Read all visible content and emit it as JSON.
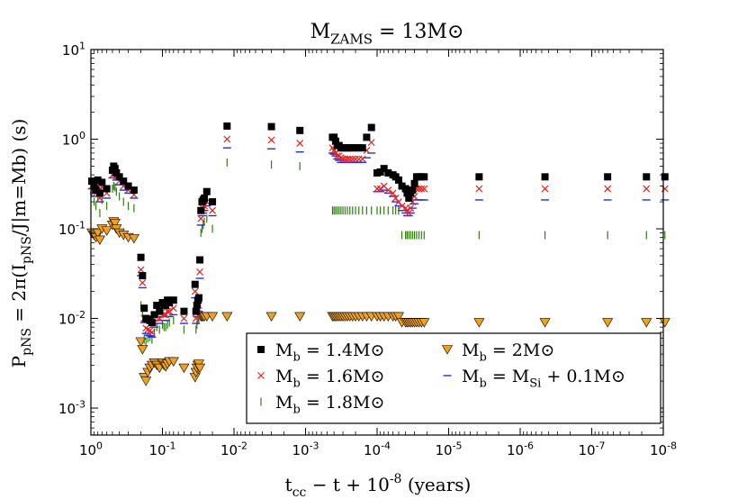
{
  "chart_data": {
    "type": "scatter",
    "title": "M_ZAMS = 13M⊙",
    "xlabel": "t_cc − t + 10^-8 (years)",
    "ylabel": "P_pNS = 2π(I_pNS/J|m=Mb) (s)",
    "xscale": "log",
    "yscale": "log",
    "x_direction": "reversed",
    "xlim": [
      1,
      1e-08
    ],
    "ylim": [
      0.0005,
      10
    ],
    "x_ticks": [
      {
        "value": 1,
        "label": "10^0"
      },
      {
        "value": 0.1,
        "label": "10^-1"
      },
      {
        "value": 0.01,
        "label": "10^-2"
      },
      {
        "value": 0.001,
        "label": "10^-3"
      },
      {
        "value": 0.0001,
        "label": "10^-4"
      },
      {
        "value": 1e-05,
        "label": "10^-5"
      },
      {
        "value": 1e-06,
        "label": "10^-6"
      },
      {
        "value": 1e-07,
        "label": "10^-7"
      },
      {
        "value": 1e-08,
        "label": "10^-8"
      }
    ],
    "y_ticks": [
      {
        "value": 0.001,
        "label": "10^-3"
      },
      {
        "value": 0.01,
        "label": "10^-2"
      },
      {
        "value": 0.1,
        "label": "10^-1"
      },
      {
        "value": 1,
        "label": "10^0"
      },
      {
        "value": 10,
        "label": "10^1"
      }
    ],
    "grid": false,
    "legend_placement": "lower-right",
    "x": [
      0.97,
      0.9,
      0.85,
      0.8,
      0.75,
      0.7,
      0.6,
      0.5,
      0.48,
      0.46,
      0.44,
      0.4,
      0.35,
      0.3,
      0.25,
      0.2,
      0.19,
      0.18,
      0.17,
      0.16,
      0.15,
      0.14,
      0.13,
      0.12,
      0.11,
      0.1,
      0.095,
      0.09,
      0.085,
      0.08,
      0.07,
      0.05,
      0.035,
      0.034,
      0.033,
      0.032,
      0.031,
      0.03,
      0.029,
      0.028,
      0.027,
      0.026,
      0.024,
      0.02,
      0.0125,
      0.003,
      0.0012,
      0.00042,
      0.0004,
      0.00038,
      0.00036,
      0.00034,
      0.00032,
      0.0003,
      0.00028,
      0.00026,
      0.00024,
      0.00022,
      0.0002,
      0.00018,
      0.00016,
      0.00014,
      0.00012,
      0.0001,
      9e-05,
      8e-05,
      7e-05,
      6e-05,
      5.5e-05,
      5e-05,
      4.5e-05,
      4e-05,
      3.8e-05,
      3.6e-05,
      3.4e-05,
      3.2e-05,
      3e-05,
      2.8e-05,
      2.6e-05,
      2.4e-05,
      2.2e-05,
      3.75e-06,
      4.5e-07,
      6e-08,
      1.72e-08,
      9.5e-09
    ],
    "series": [
      {
        "name": "M_b = 1.4M⊙",
        "marker": "square",
        "color": "#000000",
        "values": [
          0.34,
          0.3,
          0.27,
          0.35,
          0.25,
          0.33,
          0.28,
          0.45,
          0.5,
          0.47,
          0.42,
          0.38,
          0.34,
          0.3,
          0.27,
          0.048,
          0.03,
          0.013,
          0.01,
          0.0098,
          0.0095,
          0.009,
          0.011,
          0.014,
          0.012,
          0.015,
          0.014,
          0.014,
          0.016,
          0.015,
          0.016,
          0.012,
          0.024,
          0.012,
          0.014,
          0.016,
          0.017,
          0.045,
          0.16,
          0.2,
          0.21,
          0.22,
          0.26,
          0.2,
          1.4,
          1.38,
          1.25,
          1.05,
          1.05,
          0.95,
          0.85,
          0.85,
          0.8,
          0.8,
          0.8,
          0.8,
          0.8,
          0.8,
          0.8,
          0.8,
          0.8,
          1.05,
          1.35,
          0.42,
          0.43,
          0.47,
          0.42,
          0.4,
          0.38,
          0.35,
          0.3,
          0.28,
          0.25,
          0.22,
          0.25,
          0.27,
          0.32,
          0.38,
          0.38,
          0.38,
          0.38,
          0.38,
          0.38,
          0.38,
          0.38,
          0.38
        ]
      },
      {
        "name": "M_b = 1.6M⊙",
        "marker": "x",
        "color": "#e8201f",
        "values": [
          0.3,
          0.27,
          0.25,
          0.3,
          0.22,
          0.29,
          0.25,
          0.4,
          0.45,
          0.42,
          0.38,
          0.34,
          0.3,
          0.27,
          0.24,
          0.035,
          0.025,
          0.01,
          0.0078,
          0.0075,
          0.0073,
          0.007,
          0.009,
          0.011,
          0.01,
          0.012,
          0.011,
          0.011,
          0.012,
          0.012,
          0.013,
          0.01,
          0.02,
          0.01,
          0.012,
          0.013,
          0.014,
          0.033,
          0.13,
          0.16,
          0.17,
          0.18,
          0.2,
          0.16,
          1.0,
          0.98,
          0.9,
          0.8,
          0.75,
          0.7,
          0.65,
          0.65,
          0.62,
          0.6,
          0.6,
          0.6,
          0.6,
          0.6,
          0.6,
          0.6,
          0.6,
          0.75,
          0.92,
          0.28,
          0.28,
          0.3,
          0.27,
          0.25,
          0.22,
          0.2,
          0.18,
          0.17,
          0.16,
          0.15,
          0.17,
          0.2,
          0.23,
          0.28,
          0.28,
          0.28,
          0.28,
          0.28,
          0.28,
          0.28,
          0.28,
          0.28
        ]
      },
      {
        "name": "M_b = 1.8M⊙",
        "marker": "vline",
        "color": "#2e7d10",
        "values": [
          0.25,
          0.2,
          0.18,
          0.22,
          0.15,
          0.21,
          0.18,
          0.28,
          0.3,
          0.29,
          0.26,
          0.23,
          0.2,
          0.18,
          0.17,
          0.014,
          0.012,
          0.0058,
          0.0055,
          0.006,
          0.0062,
          0.0058,
          0.007,
          0.008,
          0.0075,
          0.0085,
          0.008,
          0.008,
          0.0085,
          0.009,
          0.0095,
          0.0075,
          0.013,
          0.0075,
          0.0085,
          0.0095,
          0.01,
          0.015,
          0.09,
          0.1,
          0.11,
          0.12,
          0.13,
          0.1,
          0.55,
          0.52,
          0.5,
          0.16,
          0.16,
          0.16,
          0.16,
          0.16,
          0.16,
          0.16,
          0.16,
          0.16,
          0.16,
          0.16,
          0.16,
          0.16,
          0.16,
          0.16,
          0.16,
          0.16,
          0.16,
          0.16,
          0.16,
          0.16,
          0.16,
          0.16,
          0.085,
          0.085,
          0.085,
          0.085,
          0.085,
          0.085,
          0.085,
          0.085,
          0.085,
          0.085,
          0.085,
          0.085,
          0.085,
          0.085,
          0.085,
          0.085
        ]
      },
      {
        "name": "M_b = 2M⊙",
        "marker": "triangle-down",
        "color": "#f0a020",
        "values": [
          0.09,
          0.085,
          0.08,
          0.09,
          0.075,
          0.1,
          0.095,
          0.11,
          0.12,
          0.115,
          0.1,
          0.09,
          0.085,
          0.08,
          0.078,
          0.0055,
          0.0045,
          0.0022,
          0.002,
          0.0025,
          0.0028,
          0.003,
          0.0032,
          0.003,
          0.0028,
          0.0032,
          0.003,
          0.0029,
          0.0031,
          0.0033,
          0.0033,
          0.0028,
          0.0022,
          0.0025,
          0.0028,
          0.003,
          0.0031,
          0.0028,
          0.0105,
          0.0105,
          0.0105,
          0.0105,
          0.0105,
          0.0105,
          0.0105,
          0.0105,
          0.0105,
          0.0105,
          0.0105,
          0.0105,
          0.0105,
          0.0105,
          0.0105,
          0.0105,
          0.0105,
          0.0105,
          0.0105,
          0.0105,
          0.0105,
          0.0105,
          0.0105,
          0.0105,
          0.0105,
          0.0105,
          0.0105,
          0.0105,
          0.0105,
          0.0105,
          0.0105,
          0.0105,
          0.009,
          0.009,
          0.009,
          0.009,
          0.009,
          0.009,
          0.009,
          0.009,
          0.009,
          0.009,
          0.009,
          0.009,
          0.009,
          0.009,
          0.009,
          0.009
        ]
      },
      {
        "name": "M_b = M_Si + 0.1M⊙",
        "marker": "hline",
        "color": "#2030e0",
        "values": [
          0.28,
          0.25,
          0.23,
          0.28,
          0.2,
          0.26,
          0.22,
          0.37,
          0.42,
          0.39,
          0.35,
          0.31,
          0.27,
          0.25,
          0.22,
          0.03,
          0.022,
          0.009,
          0.0068,
          0.0065,
          0.0064,
          0.0062,
          0.008,
          0.0095,
          0.0088,
          0.0105,
          0.0095,
          0.0095,
          0.0105,
          0.0105,
          0.011,
          0.0088,
          0.017,
          0.0088,
          0.0105,
          0.0115,
          0.012,
          0.028,
          0.11,
          0.14,
          0.15,
          0.16,
          0.18,
          0.14,
          0.8,
          0.78,
          0.72,
          0.7,
          0.68,
          0.65,
          0.6,
          0.58,
          0.55,
          0.55,
          0.55,
          0.55,
          0.55,
          0.55,
          0.55,
          0.55,
          0.55,
          0.62,
          0.7,
          0.26,
          0.26,
          0.27,
          0.25,
          0.23,
          0.2,
          0.18,
          0.16,
          0.15,
          0.14,
          0.14,
          0.15,
          0.17,
          0.19,
          0.21,
          0.21,
          0.21,
          0.21,
          0.21,
          0.21,
          0.21,
          0.21,
          0.21
        ]
      }
    ]
  }
}
